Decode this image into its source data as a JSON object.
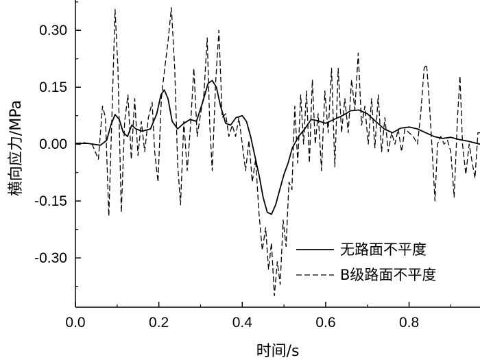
{
  "chart_data": {
    "type": "line",
    "xlabel": "时间/s",
    "ylabel": "横向应力/MPa",
    "xlim": [
      0.0,
      0.97
    ],
    "ylim": [
      -0.43,
      0.38
    ],
    "x_ticks": [
      0.0,
      0.2,
      0.4,
      0.6,
      0.8
    ],
    "x_tick_labels": [
      "0.0",
      "0.2",
      "0.4",
      "0.6",
      "0.8"
    ],
    "y_ticks": [
      0.3,
      0.15,
      0.0,
      -0.15,
      -0.3
    ],
    "y_tick_labels": [
      "0.30",
      "0.15",
      "0.00",
      "-0.15",
      "-0.30"
    ],
    "grid": false,
    "legend_position": "bottom-right",
    "series": [
      {
        "name": "无路面不平度",
        "style": "solid",
        "color": "#000000",
        "points": [
          [
            0.0,
            0.002
          ],
          [
            0.03,
            0.002
          ],
          [
            0.06,
            -0.003
          ],
          [
            0.075,
            0.01
          ],
          [
            0.085,
            0.05
          ],
          [
            0.095,
            0.078
          ],
          [
            0.105,
            0.065
          ],
          [
            0.115,
            0.03
          ],
          [
            0.125,
            0.02
          ],
          [
            0.135,
            0.05
          ],
          [
            0.145,
            0.04
          ],
          [
            0.16,
            0.034
          ],
          [
            0.18,
            0.04
          ],
          [
            0.195,
            0.08
          ],
          [
            0.205,
            0.13
          ],
          [
            0.213,
            0.143
          ],
          [
            0.222,
            0.12
          ],
          [
            0.232,
            0.06
          ],
          [
            0.245,
            0.04
          ],
          [
            0.26,
            0.055
          ],
          [
            0.275,
            0.065
          ],
          [
            0.29,
            0.06
          ],
          [
            0.305,
            0.11
          ],
          [
            0.318,
            0.16
          ],
          [
            0.328,
            0.168
          ],
          [
            0.338,
            0.15
          ],
          [
            0.348,
            0.1
          ],
          [
            0.36,
            0.055
          ],
          [
            0.372,
            0.05
          ],
          [
            0.385,
            0.07
          ],
          [
            0.4,
            0.075
          ],
          [
            0.41,
            0.06
          ],
          [
            0.42,
            0.02
          ],
          [
            0.43,
            -0.03
          ],
          [
            0.44,
            -0.08
          ],
          [
            0.45,
            -0.14
          ],
          [
            0.46,
            -0.18
          ],
          [
            0.47,
            -0.185
          ],
          [
            0.48,
            -0.16
          ],
          [
            0.49,
            -0.12
          ],
          [
            0.5,
            -0.08
          ],
          [
            0.51,
            -0.05
          ],
          [
            0.52,
            -0.01
          ],
          [
            0.535,
            0.02
          ],
          [
            0.55,
            0.04
          ],
          [
            0.565,
            0.065
          ],
          [
            0.58,
            0.062
          ],
          [
            0.6,
            0.055
          ],
          [
            0.62,
            0.065
          ],
          [
            0.64,
            0.075
          ],
          [
            0.66,
            0.088
          ],
          [
            0.68,
            0.09
          ],
          [
            0.7,
            0.08
          ],
          [
            0.72,
            0.06
          ],
          [
            0.74,
            0.04
          ],
          [
            0.76,
            0.03
          ],
          [
            0.78,
            0.042
          ],
          [
            0.8,
            0.045
          ],
          [
            0.82,
            0.04
          ],
          [
            0.84,
            0.03
          ],
          [
            0.86,
            0.02
          ],
          [
            0.88,
            0.015
          ],
          [
            0.9,
            0.018
          ],
          [
            0.92,
            0.012
          ],
          [
            0.94,
            0.008
          ],
          [
            0.97,
            0.0
          ]
        ]
      },
      {
        "name": "B级路面不平度",
        "style": "dashed",
        "color": "#000000",
        "points": [
          [
            0.0,
            0.002
          ],
          [
            0.02,
            0.004
          ],
          [
            0.04,
            0.0
          ],
          [
            0.055,
            -0.04
          ],
          [
            0.065,
            0.1
          ],
          [
            0.072,
            0.07
          ],
          [
            0.08,
            -0.19
          ],
          [
            0.088,
            0.09
          ],
          [
            0.095,
            0.355
          ],
          [
            0.102,
            0.2
          ],
          [
            0.11,
            -0.18
          ],
          [
            0.118,
            0.06
          ],
          [
            0.126,
            0.13
          ],
          [
            0.134,
            -0.04
          ],
          [
            0.142,
            0.12
          ],
          [
            0.15,
            -0.03
          ],
          [
            0.158,
            0.06
          ],
          [
            0.166,
            -0.02
          ],
          [
            0.175,
            0.07
          ],
          [
            0.184,
            0.11
          ],
          [
            0.19,
            -0.02
          ],
          [
            0.198,
            -0.1
          ],
          [
            0.206,
            0.12
          ],
          [
            0.214,
            0.2
          ],
          [
            0.222,
            0.27
          ],
          [
            0.23,
            0.36
          ],
          [
            0.238,
            0.2
          ],
          [
            0.245,
            -0.05
          ],
          [
            0.252,
            -0.16
          ],
          [
            0.26,
            0.06
          ],
          [
            0.268,
            -0.07
          ],
          [
            0.276,
            0.05
          ],
          [
            0.284,
            0.2
          ],
          [
            0.292,
            0.02
          ],
          [
            0.3,
            0.08
          ],
          [
            0.308,
            0.13
          ],
          [
            0.316,
            0.28
          ],
          [
            0.322,
            0.05
          ],
          [
            0.328,
            -0.07
          ],
          [
            0.336,
            0.16
          ],
          [
            0.344,
            0.3
          ],
          [
            0.352,
            0.07
          ],
          [
            0.36,
            0.08
          ],
          [
            0.368,
            0.02
          ],
          [
            0.376,
            0.05
          ],
          [
            0.384,
            0.02
          ],
          [
            0.392,
            0.07
          ],
          [
            0.4,
            0.0
          ],
          [
            0.408,
            -0.07
          ],
          [
            0.416,
            0.01
          ],
          [
            0.424,
            -0.1
          ],
          [
            0.432,
            -0.04
          ],
          [
            0.44,
            -0.18
          ],
          [
            0.448,
            -0.28
          ],
          [
            0.456,
            -0.22
          ],
          [
            0.463,
            -0.33
          ],
          [
            0.47,
            -0.26
          ],
          [
            0.477,
            -0.4
          ],
          [
            0.484,
            -0.31
          ],
          [
            0.491,
            -0.37
          ],
          [
            0.498,
            -0.2
          ],
          [
            0.505,
            -0.27
          ],
          [
            0.512,
            -0.1
          ],
          [
            0.519,
            -0.12
          ],
          [
            0.526,
            0.1
          ],
          [
            0.533,
            -0.05
          ],
          [
            0.54,
            0.13
          ],
          [
            0.547,
            0.0
          ],
          [
            0.554,
            0.14
          ],
          [
            0.561,
            -0.05
          ],
          [
            0.568,
            0.17
          ],
          [
            0.575,
            0.0
          ],
          [
            0.582,
            0.08
          ],
          [
            0.59,
            -0.07
          ],
          [
            0.598,
            0.14
          ],
          [
            0.606,
            0.03
          ],
          [
            0.614,
            0.2
          ],
          [
            0.622,
            -0.06
          ],
          [
            0.63,
            0.2
          ],
          [
            0.638,
            0.03
          ],
          [
            0.646,
            0.12
          ],
          [
            0.654,
            0.03
          ],
          [
            0.662,
            0.17
          ],
          [
            0.67,
            0.09
          ],
          [
            0.678,
            0.24
          ],
          [
            0.686,
            0.05
          ],
          [
            0.694,
            0.1
          ],
          [
            0.702,
            0.0
          ],
          [
            0.71,
            0.12
          ],
          [
            0.718,
            -0.01
          ],
          [
            0.726,
            0.13
          ],
          [
            0.734,
            -0.02
          ],
          [
            0.742,
            0.07
          ],
          [
            0.75,
            -0.02
          ],
          [
            0.758,
            0.03
          ],
          [
            0.766,
            0.0
          ],
          [
            0.774,
            0.04
          ],
          [
            0.782,
            -0.02
          ],
          [
            0.79,
            0.04
          ],
          [
            0.8,
            0.03
          ],
          [
            0.81,
            0.02
          ],
          [
            0.82,
            0.0
          ],
          [
            0.828,
            0.08
          ],
          [
            0.836,
            0.2
          ],
          [
            0.842,
            0.21
          ],
          [
            0.848,
            0.12
          ],
          [
            0.856,
            -0.03
          ],
          [
            0.862,
            -0.15
          ],
          [
            0.868,
            0.0
          ],
          [
            0.876,
            0.02
          ],
          [
            0.884,
            0.0
          ],
          [
            0.892,
            0.01
          ],
          [
            0.9,
            -0.02
          ],
          [
            0.908,
            -0.14
          ],
          [
            0.916,
            0.07
          ],
          [
            0.922,
            0.18
          ],
          [
            0.928,
            0.0
          ],
          [
            0.936,
            -0.08
          ],
          [
            0.944,
            0.0
          ],
          [
            0.95,
            -0.04
          ],
          [
            0.958,
            -0.09
          ],
          [
            0.965,
            0.03
          ],
          [
            0.97,
            0.03
          ]
        ]
      }
    ]
  }
}
